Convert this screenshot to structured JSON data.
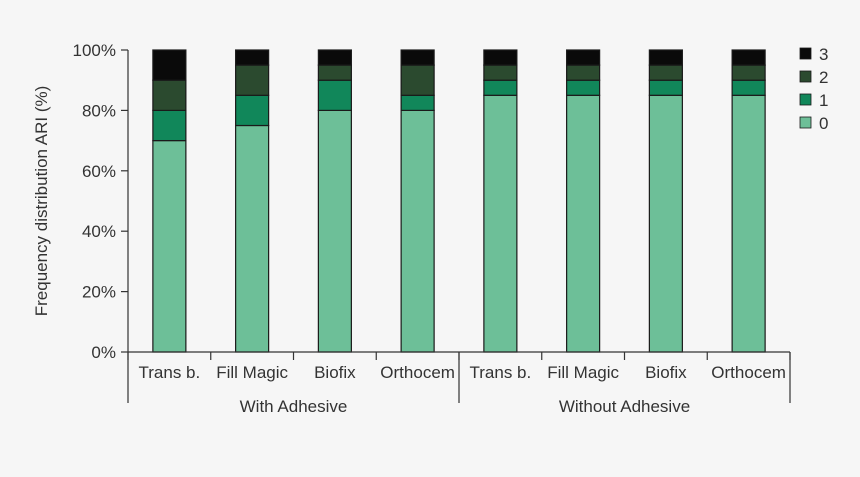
{
  "chart_data": {
    "type": "bar",
    "stacked": true,
    "ylabel": "Frequency distribution ARI (%)",
    "ylim": [
      0,
      100
    ],
    "yticks": [
      "0%",
      "20%",
      "40%",
      "60%",
      "80%",
      "100%"
    ],
    "categories": [
      "Trans b.",
      "Fill Magic",
      "Biofix",
      "Orthocem",
      "Trans b.",
      "Fill Magic",
      "Biofix",
      "Orthocem"
    ],
    "groups": [
      {
        "label": "With Adhesive",
        "count": 4
      },
      {
        "label": "Without Adhesive",
        "count": 4
      }
    ],
    "series": [
      {
        "name": "0",
        "color": "#6dbf98",
        "values": [
          70,
          75,
          80,
          80,
          85,
          85,
          85,
          85
        ]
      },
      {
        "name": "1",
        "color": "#11875a",
        "values": [
          10,
          10,
          10,
          5,
          5,
          5,
          5,
          5
        ]
      },
      {
        "name": "2",
        "color": "#2b4a2f",
        "values": [
          10,
          10,
          5,
          10,
          5,
          5,
          5,
          5
        ]
      },
      {
        "name": "3",
        "color": "#0a0a0a",
        "values": [
          10,
          5,
          5,
          5,
          5,
          5,
          5,
          5
        ]
      }
    ],
    "legend": {
      "position": "top-right",
      "order": [
        "3",
        "2",
        "1",
        "0"
      ]
    }
  }
}
